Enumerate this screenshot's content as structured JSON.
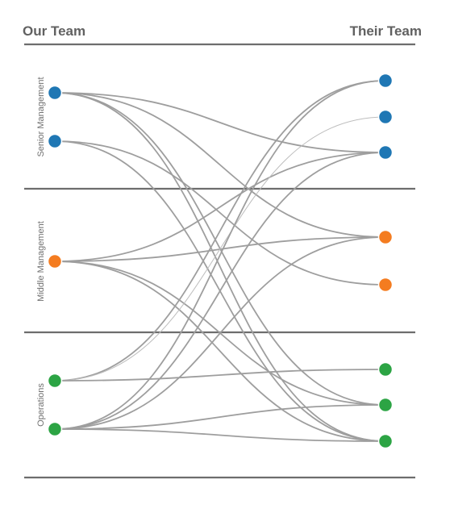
{
  "headers": {
    "left": "Our Team",
    "right": "Their Team"
  },
  "groups": [
    {
      "key": "senior",
      "label": "Senior Management",
      "color": "#1f77b4"
    },
    {
      "key": "middle",
      "label": "Middle Management",
      "color": "#f47c20"
    },
    {
      "key": "ops",
      "label": "Operations",
      "color": "#2ca444"
    }
  ],
  "left_nodes": [
    {
      "id": "L1",
      "group": "senior"
    },
    {
      "id": "L2",
      "group": "senior"
    },
    {
      "id": "L3",
      "group": "middle"
    },
    {
      "id": "L4",
      "group": "ops"
    },
    {
      "id": "L5",
      "group": "ops"
    }
  ],
  "right_nodes": [
    {
      "id": "R1",
      "group": "senior"
    },
    {
      "id": "R2",
      "group": "senior"
    },
    {
      "id": "R3",
      "group": "senior"
    },
    {
      "id": "R4",
      "group": "middle"
    },
    {
      "id": "R5",
      "group": "middle"
    },
    {
      "id": "R6",
      "group": "ops"
    },
    {
      "id": "R7",
      "group": "ops"
    },
    {
      "id": "R8",
      "group": "ops"
    }
  ],
  "links": [
    {
      "from": "L1",
      "to": "R3"
    },
    {
      "from": "L1",
      "to": "R4"
    },
    {
      "from": "L1",
      "to": "R7"
    },
    {
      "from": "L1",
      "to": "R8"
    },
    {
      "from": "L2",
      "to": "R5"
    },
    {
      "from": "L2",
      "to": "R8"
    },
    {
      "from": "L3",
      "to": "R3"
    },
    {
      "from": "L3",
      "to": "R4"
    },
    {
      "from": "L3",
      "to": "R7"
    },
    {
      "from": "L3",
      "to": "R8"
    },
    {
      "from": "L4",
      "to": "R1"
    },
    {
      "from": "L4",
      "to": "R2",
      "thin": true
    },
    {
      "from": "L4",
      "to": "R6"
    },
    {
      "from": "L5",
      "to": "R1"
    },
    {
      "from": "L5",
      "to": "R3"
    },
    {
      "from": "L5",
      "to": "R4"
    },
    {
      "from": "L5",
      "to": "R7"
    },
    {
      "from": "L5",
      "to": "R8"
    }
  ]
}
